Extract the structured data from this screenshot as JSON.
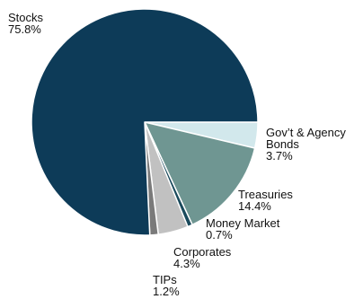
{
  "chart_data": {
    "type": "pie",
    "slices": [
      {
        "label": "Gov’t & Agency Bonds",
        "display_lines": [
          "Gov’t & Agency",
          "Bonds"
        ],
        "value_text": "3.7%",
        "value": 3.7,
        "color": "#d2e8ec"
      },
      {
        "label": "Treasuries",
        "display_lines": [
          "Treasuries"
        ],
        "value_text": "14.4%",
        "value": 14.4,
        "color": "#6f9692"
      },
      {
        "label": "Money Market",
        "display_lines": [
          "Money Market"
        ],
        "value_text": "0.7%",
        "value": 0.7,
        "color": "#1a4a5c"
      },
      {
        "label": "Corporates",
        "display_lines": [
          "Corporates"
        ],
        "value_text": "4.3%",
        "value": 4.3,
        "color": "#c1c1c1"
      },
      {
        "label": "TIPs",
        "display_lines": [
          "TIPs"
        ],
        "value_text": "1.2%",
        "value": 1.2,
        "color": "#7a7a7a"
      },
      {
        "label": "Stocks",
        "display_lines": [
          "Stocks"
        ],
        "value_text": "75.8%",
        "value": 75.8,
        "color": "#0d3b58"
      }
    ],
    "start": "3 o'clock",
    "direction": "clockwise",
    "slice_border_color": "#ffffff"
  }
}
